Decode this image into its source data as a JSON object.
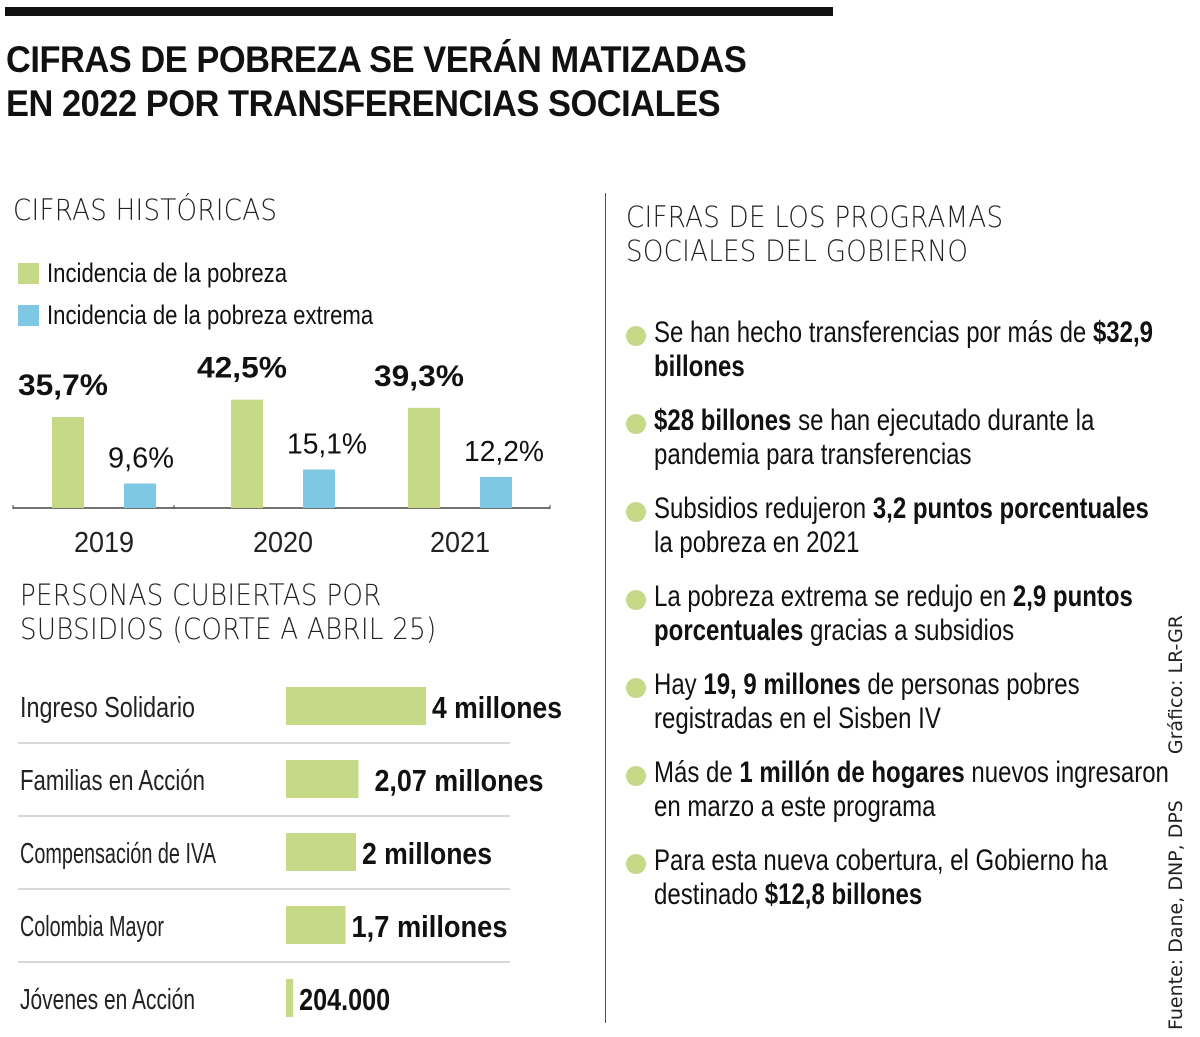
{
  "headline": {
    "line1": "CIFRAS DE POBREZA SE VERÁN MATIZADAS",
    "line2": "EN 2022 POR TRANSFERENCIAS SOCIALES"
  },
  "colors": {
    "green": "#c5d987",
    "blue": "#7ec8e3",
    "divider": "#cccccc"
  },
  "chart_data": [
    {
      "type": "bar",
      "title": "CIFRAS HISTÓRICAS",
      "categories": [
        "2019",
        "2020",
        "2021"
      ],
      "series": [
        {
          "name": "Incidencia de la pobreza",
          "color": "#c5d987",
          "values": [
            35.7,
            42.5,
            39.3
          ],
          "labels": [
            "35,7%",
            "42,5%",
            "39,3%"
          ]
        },
        {
          "name": "Incidencia de la pobreza extrema",
          "color": "#7ec8e3",
          "values": [
            9.6,
            15.1,
            12.2
          ],
          "labels": [
            "9,6%",
            "15,1%",
            "12,2%"
          ]
        }
      ],
      "xlabel": "",
      "ylabel": "",
      "unit": "%",
      "ylim": [
        0,
        45
      ],
      "grid": false,
      "legend": "top-left"
    },
    {
      "type": "bar",
      "orientation": "horizontal",
      "title": "PERSONAS CUBIERTAS POR SUBSIDIOS (CORTE A ABRIL 25)",
      "title_line1": "PERSONAS CUBIERTAS POR",
      "title_line2": "SUBSIDIOS (CORTE A ABRIL 25)",
      "categories": [
        "Ingreso Solidario",
        "Familias en Acción",
        "Compensación de IVA",
        "Colombia Mayor",
        "Jóvenes en Acción"
      ],
      "values": [
        4000000,
        2070000,
        2000000,
        1700000,
        204000
      ],
      "labels": [
        "4 millones",
        "2,07 millones",
        "2 millones",
        "1,7 millones",
        "204.000"
      ],
      "color": "#c5d987",
      "xlim": [
        0,
        4000000
      ],
      "grid": false
    }
  ],
  "programs": {
    "title_line1": "CIFRAS DE LOS PROGRAMAS",
    "title_line2": "SOCIALES DEL GOBIERNO",
    "bullets": [
      {
        "parts": [
          {
            "t": "Se han hecho transferencias por más de ",
            "b": false
          },
          {
            "t": "$32,9 billones",
            "b": true
          }
        ]
      },
      {
        "parts": [
          {
            "t": "$28 billones",
            "b": true
          },
          {
            "t": " se han ejecutado durante la pandemia para transferencias",
            "b": false
          }
        ]
      },
      {
        "parts": [
          {
            "t": "Subsidios redujeron ",
            "b": false
          },
          {
            "t": "3,2 puntos porcentuales",
            "b": true
          },
          {
            "t": " la pobreza en 2021",
            "b": false
          }
        ]
      },
      {
        "parts": [
          {
            "t": "La pobreza extrema se redujo en ",
            "b": false
          },
          {
            "t": "2,9 puntos porcentuales",
            "b": true
          },
          {
            "t": " gracias a subsidios",
            "b": false
          }
        ]
      },
      {
        "parts": [
          {
            "t": "Hay ",
            "b": false
          },
          {
            "t": "19, 9 millones",
            "b": true
          },
          {
            "t": " de personas pobres registradas en el Sisben IV",
            "b": false
          }
        ]
      },
      {
        "parts": [
          {
            "t": "Más de ",
            "b": false
          },
          {
            "t": "1 millón de hogares",
            "b": true
          },
          {
            "t": " nuevos ingresaron en marzo a este programa",
            "b": false
          }
        ]
      },
      {
        "parts": [
          {
            "t": "Para esta nueva cobertura, el Gobierno ha destinado ",
            "b": false
          },
          {
            "t": "$12,8 billones",
            "b": true
          }
        ]
      }
    ]
  },
  "credits": {
    "source": "Fuente: Dane, DNP, DPS",
    "graphic": "Gráfico: LR-GR"
  }
}
